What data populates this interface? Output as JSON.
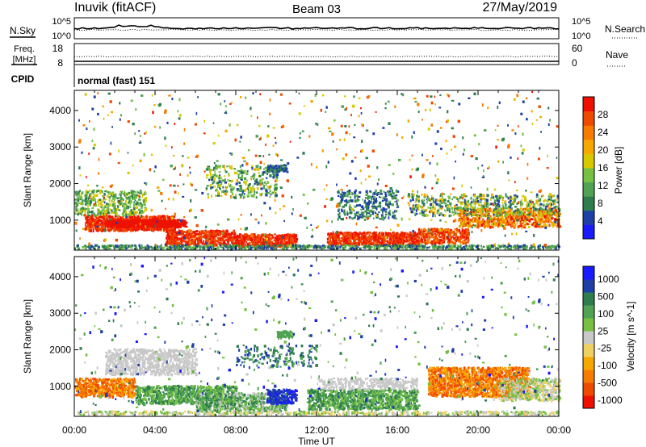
{
  "header": {
    "title": "Inuvik (fitACF)",
    "beam": "Beam 03",
    "date": "27/May/2019"
  },
  "noise_panel": {
    "left_label": "N.Sky",
    "right_label": "N.Search",
    "top_tick": "10^5",
    "bottom_tick": "10^0",
    "right_top_tick": "10^5",
    "right_bottom_tick": "10^0"
  },
  "freq_panel": {
    "left_label_1": "Freq.",
    "left_label_2": "[MHz]",
    "left_top": "18",
    "left_bottom": "8",
    "right_label": "Nave",
    "right_top": "60",
    "right_bottom": "0"
  },
  "cpid_panel": {
    "label": "CPID",
    "mode": "normal (fast) 151"
  },
  "colors": {
    "power": [
      "#1a1aff",
      "#1f3fa8",
      "#2e7d4f",
      "#4fa352",
      "#76c043",
      "#d8c800",
      "#f7a800",
      "#f77b00",
      "#ee4a00",
      "#ee1100"
    ],
    "velocity": [
      "#ee1100",
      "#ee4a00",
      "#f77b00",
      "#f7a800",
      "#f0d060",
      "#c8c8c8",
      "#76c043",
      "#4fa352",
      "#2e7d4f",
      "#1f3fa8",
      "#1a1aff"
    ]
  },
  "chart_data": [
    {
      "type": "heatmap",
      "title": "",
      "xlabel": "",
      "ylabel": "Slant Range [km]",
      "x_ticks": [
        "00:00",
        "04:00",
        "08:00",
        "12:00",
        "16:00",
        "20:00",
        "00:00"
      ],
      "y_ticks": [
        "1000",
        "2000",
        "3000",
        "4000"
      ],
      "ylim": [
        180,
        4550
      ],
      "xlim_hours": [
        0,
        24
      ],
      "colorbar": {
        "label": "Power [dB]",
        "ticks": [
          "4",
          "8",
          "12",
          "16",
          "20",
          "24",
          "28"
        ],
        "range": [
          0,
          32
        ]
      }
    },
    {
      "type": "heatmap",
      "title": "",
      "xlabel": "Time UT",
      "ylabel": "Slant Range [km]",
      "x_ticks": [
        "00:00",
        "04:00",
        "08:00",
        "12:00",
        "16:00",
        "20:00",
        "00:00"
      ],
      "y_ticks": [
        "1000",
        "2000",
        "3000",
        "4000"
      ],
      "ylim": [
        180,
        4550
      ],
      "xlim_hours": [
        0,
        24
      ],
      "colorbar": {
        "label": "Velocity [m s^-1]",
        "ticks": [
          "1000",
          "500",
          "100",
          "25",
          "-25",
          "-100",
          "-500",
          "-1000"
        ]
      }
    }
  ]
}
